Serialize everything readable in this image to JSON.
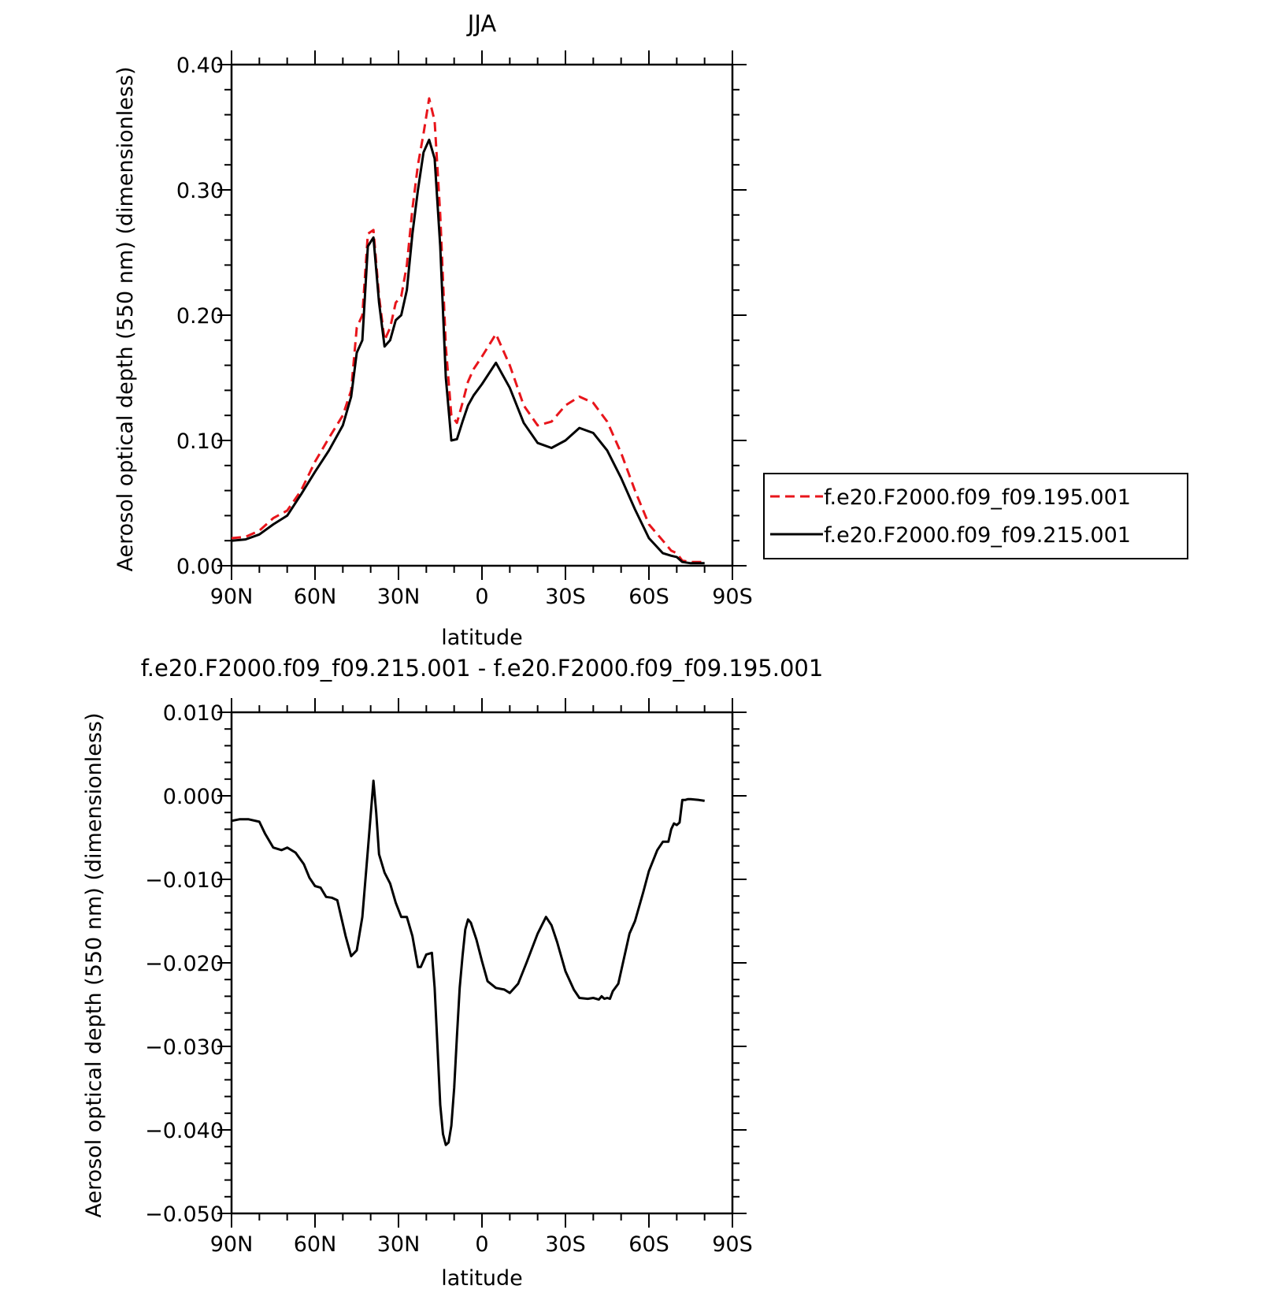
{
  "chart_data": [
    {
      "type": "line",
      "title": "JJA",
      "xlabel": "latitude",
      "ylabel": "Aerosol optical depth (550 nm) (dimensionless)",
      "xlim": [
        90,
        -90
      ],
      "ylim": [
        0,
        0.4
      ],
      "xticks": [
        {
          "value": 90,
          "label": "90N"
        },
        {
          "value": 60,
          "label": "60N"
        },
        {
          "value": 30,
          "label": "30N"
        },
        {
          "value": 0,
          "label": "0"
        },
        {
          "value": -30,
          "label": "30S"
        },
        {
          "value": -60,
          "label": "60S"
        },
        {
          "value": -90,
          "label": "90S"
        }
      ],
      "yticks": [
        {
          "value": 0.0,
          "label": "0.00"
        },
        {
          "value": 0.1,
          "label": "0.10"
        },
        {
          "value": 0.2,
          "label": "0.20"
        },
        {
          "value": 0.3,
          "label": "0.30"
        },
        {
          "value": 0.4,
          "label": "0.40"
        }
      ],
      "legend_position": "right",
      "series": [
        {
          "name": "f.e20.F2000.f09_f09.195.001",
          "color": "#e8151b",
          "dash": "dashed",
          "x": [
            90,
            85,
            80,
            75,
            70,
            65,
            60,
            55,
            50,
            47,
            45,
            43,
            41,
            39,
            37,
            35,
            33,
            31,
            29,
            27,
            25,
            23,
            21,
            19,
            17,
            15,
            13,
            11,
            9,
            7,
            5,
            3,
            0,
            -5,
            -10,
            -15,
            -20,
            -25,
            -30,
            -35,
            -40,
            -45,
            -50,
            -55,
            -60,
            -65,
            -68,
            -70,
            -72,
            -75,
            -80
          ],
          "y": [
            0.022,
            0.023,
            0.028,
            0.038,
            0.044,
            0.06,
            0.083,
            0.102,
            0.12,
            0.14,
            0.19,
            0.2,
            0.265,
            0.268,
            0.215,
            0.18,
            0.19,
            0.21,
            0.215,
            0.24,
            0.285,
            0.32,
            0.345,
            0.373,
            0.355,
            0.28,
            0.175,
            0.12,
            0.114,
            0.13,
            0.147,
            0.157,
            0.167,
            0.185,
            0.16,
            0.128,
            0.112,
            0.115,
            0.128,
            0.135,
            0.13,
            0.115,
            0.09,
            0.06,
            0.033,
            0.02,
            0.012,
            0.01,
            0.004,
            0.003,
            0.003
          ]
        },
        {
          "name": "f.e20.F2000.f09_f09.215.001",
          "color": "#000000",
          "dash": "solid",
          "x": [
            90,
            85,
            80,
            75,
            70,
            65,
            60,
            55,
            50,
            47,
            45,
            43,
            41,
            39,
            37,
            35,
            33,
            31,
            29,
            27,
            25,
            23,
            21,
            19,
            17,
            15,
            13,
            11,
            9,
            7,
            5,
            3,
            0,
            -5,
            -10,
            -15,
            -20,
            -25,
            -30,
            -35,
            -40,
            -45,
            -50,
            -55,
            -60,
            -65,
            -68,
            -70,
            -72,
            -75,
            -80
          ],
          "y": [
            0.02,
            0.021,
            0.025,
            0.033,
            0.04,
            0.057,
            0.075,
            0.092,
            0.112,
            0.135,
            0.17,
            0.18,
            0.255,
            0.262,
            0.21,
            0.175,
            0.18,
            0.196,
            0.2,
            0.22,
            0.265,
            0.3,
            0.33,
            0.34,
            0.325,
            0.255,
            0.15,
            0.1,
            0.101,
            0.115,
            0.128,
            0.136,
            0.145,
            0.162,
            0.142,
            0.114,
            0.098,
            0.094,
            0.1,
            0.11,
            0.106,
            0.092,
            0.07,
            0.045,
            0.022,
            0.01,
            0.008,
            0.007,
            0.003,
            0.002,
            0.002
          ]
        }
      ]
    },
    {
      "type": "line",
      "title": "f.e20.F2000.f09_f09.215.001 - f.e20.F2000.f09_f09.195.001",
      "xlabel": "latitude",
      "ylabel": "Aerosol optical depth (550 nm) (dimensionless)",
      "xlim": [
        90,
        -90
      ],
      "ylim": [
        -0.05,
        0.01
      ],
      "xticks": [
        {
          "value": 90,
          "label": "90N"
        },
        {
          "value": 60,
          "label": "60N"
        },
        {
          "value": 30,
          "label": "30N"
        },
        {
          "value": 0,
          "label": "0"
        },
        {
          "value": -30,
          "label": "30S"
        },
        {
          "value": -60,
          "label": "60S"
        },
        {
          "value": -90,
          "label": "90S"
        }
      ],
      "yticks": [
        {
          "value": -0.05,
          "label": "−0.050"
        },
        {
          "value": -0.04,
          "label": "−0.040"
        },
        {
          "value": -0.03,
          "label": "−0.030"
        },
        {
          "value": -0.02,
          "label": "−0.020"
        },
        {
          "value": -0.01,
          "label": "−0.010"
        },
        {
          "value": 0.0,
          "label": "0.000"
        },
        {
          "value": 0.01,
          "label": "0.010"
        }
      ],
      "series": [
        {
          "name": "",
          "color": "#000000",
          "dash": "solid",
          "x": [
            90,
            87,
            84,
            80,
            78,
            75,
            72,
            70,
            67,
            64,
            62,
            60,
            58,
            56,
            54,
            52,
            49,
            47,
            45,
            43,
            41,
            39,
            38,
            37,
            35,
            33,
            31,
            29,
            27,
            25,
            23,
            22,
            20,
            18,
            17,
            16,
            15,
            14,
            13,
            12,
            11,
            10,
            9,
            8,
            7,
            6,
            5,
            4,
            2,
            0,
            -2,
            -5,
            -8,
            -10,
            -13,
            -16,
            -20,
            -23,
            -25,
            -27,
            -30,
            -33,
            -35,
            -38,
            -40,
            -42,
            -43,
            -44,
            -45,
            -46,
            -47,
            -49,
            -51,
            -53,
            -55,
            -58,
            -60,
            -63,
            -65,
            -67,
            -68,
            -69,
            -70,
            -71,
            -72,
            -73,
            -74,
            -75,
            -78,
            -80
          ],
          "y": [
            -0.003,
            -0.0028,
            -0.0028,
            -0.0031,
            -0.0045,
            -0.0062,
            -0.0065,
            -0.0062,
            -0.0068,
            -0.0082,
            -0.0098,
            -0.0108,
            -0.011,
            -0.0121,
            -0.0122,
            -0.0125,
            -0.0168,
            -0.0192,
            -0.0185,
            -0.0145,
            -0.0065,
            0.0018,
            -0.002,
            -0.007,
            -0.0092,
            -0.0105,
            -0.0128,
            -0.0145,
            -0.0145,
            -0.0168,
            -0.0205,
            -0.0205,
            -0.019,
            -0.0188,
            -0.023,
            -0.03,
            -0.037,
            -0.0405,
            -0.0418,
            -0.0415,
            -0.0395,
            -0.035,
            -0.0288,
            -0.023,
            -0.0192,
            -0.016,
            -0.0148,
            -0.0152,
            -0.0172,
            -0.0198,
            -0.0222,
            -0.023,
            -0.0232,
            -0.0236,
            -0.0225,
            -0.02,
            -0.0165,
            -0.0145,
            -0.0155,
            -0.0175,
            -0.021,
            -0.0232,
            -0.0242,
            -0.0243,
            -0.0242,
            -0.0244,
            -0.024,
            -0.0243,
            -0.0242,
            -0.0243,
            -0.0234,
            -0.0225,
            -0.0195,
            -0.0165,
            -0.015,
            -0.0115,
            -0.009,
            -0.0065,
            -0.0055,
            -0.0055,
            -0.004,
            -0.0033,
            -0.0035,
            -0.0032,
            -0.0005,
            -0.0005,
            -0.0004,
            -0.0004,
            -0.0005,
            -0.0006
          ]
        }
      ]
    }
  ]
}
